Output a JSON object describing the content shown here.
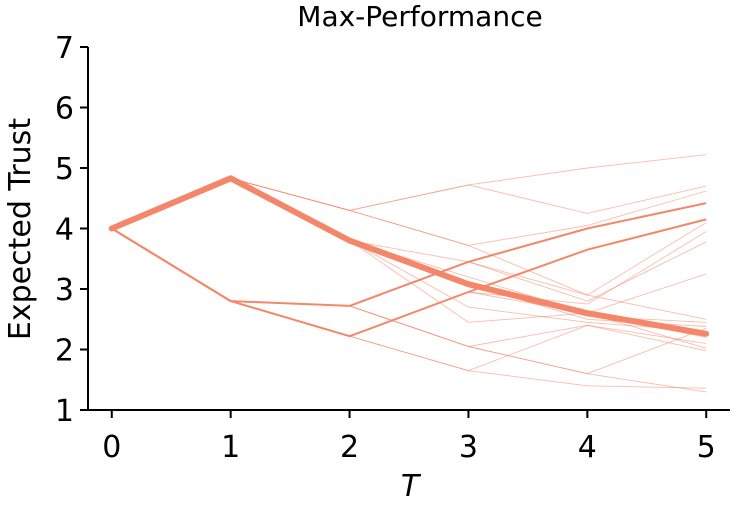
{
  "chart_data": {
    "type": "line",
    "title": "Max-Performance",
    "xlabel": "T",
    "ylabel": "Expected Trust",
    "x": [
      0,
      1,
      2,
      3,
      4,
      5
    ],
    "xlim": [
      -0.2,
      5.2
    ],
    "ylim": [
      1,
      7
    ],
    "xticks": [
      0,
      1,
      2,
      3,
      4,
      5
    ],
    "yticks": [
      1,
      2,
      3,
      4,
      5,
      6,
      7
    ],
    "grid": false,
    "color": "#f4876a",
    "mean_series": [
      4.0,
      4.83,
      3.8,
      3.08,
      2.6,
      2.26
    ],
    "emphasized_series": [
      [
        4.0,
        2.8,
        2.72,
        3.45,
        4.0,
        4.42
      ],
      [
        4.0,
        2.8,
        2.22,
        2.95,
        3.65,
        4.15
      ]
    ],
    "thin_series": [
      [
        4.0,
        4.83,
        4.3,
        4.72,
        5.0,
        5.22
      ],
      [
        4.0,
        4.83,
        4.3,
        4.72,
        4.25,
        4.7
      ],
      [
        4.0,
        4.83,
        4.3,
        3.72,
        4.05,
        4.62
      ],
      [
        4.0,
        4.83,
        4.3,
        3.72,
        2.9,
        4.1
      ],
      [
        4.0,
        4.83,
        3.8,
        3.45,
        2.8,
        3.78
      ],
      [
        4.0,
        4.83,
        3.8,
        3.2,
        2.6,
        3.25
      ],
      [
        4.0,
        4.83,
        3.8,
        3.08,
        2.55,
        2.45
      ],
      [
        4.0,
        4.83,
        3.8,
        3.08,
        2.5,
        2.38
      ],
      [
        4.0,
        4.83,
        3.8,
        2.7,
        2.45,
        2.3
      ],
      [
        4.0,
        4.83,
        3.8,
        2.45,
        2.6,
        2.2
      ],
      [
        4.0,
        2.8,
        2.72,
        3.45,
        2.9,
        2.5
      ],
      [
        4.0,
        2.8,
        2.72,
        2.05,
        2.4,
        2.1
      ],
      [
        4.0,
        2.8,
        2.72,
        2.05,
        1.6,
        2.35
      ],
      [
        4.0,
        2.8,
        2.22,
        2.95,
        2.75,
        3.95
      ],
      [
        4.0,
        2.8,
        2.22,
        2.95,
        2.6,
        2.02
      ],
      [
        4.0,
        2.8,
        2.22,
        1.65,
        2.4,
        1.98
      ],
      [
        4.0,
        2.8,
        2.22,
        1.65,
        1.4,
        1.36
      ],
      [
        4.0,
        2.8,
        2.72,
        2.05,
        1.6,
        1.3
      ]
    ]
  }
}
